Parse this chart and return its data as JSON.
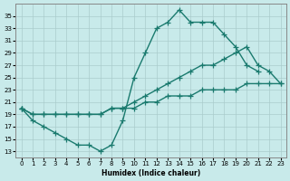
{
  "xlabel": "Humidex (Indice chaleur)",
  "ylabel": "",
  "bg_color": "#c8eaea",
  "line_color": "#1a7a6e",
  "grid_color": "#aacccc",
  "xlim": [
    -0.5,
    23.5
  ],
  "ylim": [
    12,
    37
  ],
  "yticks": [
    13,
    15,
    17,
    19,
    21,
    23,
    25,
    27,
    29,
    31,
    33,
    35
  ],
  "xticks": [
    0,
    1,
    2,
    3,
    4,
    5,
    6,
    7,
    8,
    9,
    10,
    11,
    12,
    13,
    14,
    15,
    16,
    17,
    18,
    19,
    20,
    21,
    22,
    23
  ],
  "line1_x": [
    0,
    1,
    2,
    3,
    4,
    5,
    6,
    7,
    8,
    9,
    10,
    11,
    12,
    13,
    14,
    15,
    16,
    17,
    18,
    19,
    20,
    21
  ],
  "line1_y": [
    20,
    18,
    17,
    16,
    15,
    14,
    14,
    13,
    14,
    18,
    25,
    29,
    33,
    34,
    36,
    34,
    34,
    34,
    32,
    30,
    27,
    26
  ],
  "line2_x": [
    0,
    1,
    2,
    3,
    4,
    5,
    6,
    7,
    8,
    9,
    10,
    11,
    12,
    13,
    14,
    15,
    16,
    17,
    18,
    19,
    20,
    21,
    22,
    23
  ],
  "line2_y": [
    20,
    19,
    19,
    19,
    19,
    19,
    19,
    19,
    20,
    20,
    21,
    22,
    23,
    24,
    25,
    26,
    27,
    27,
    28,
    29,
    30,
    27,
    26,
    24
  ],
  "line3_x": [
    0,
    1,
    2,
    3,
    4,
    5,
    6,
    7,
    8,
    9,
    10,
    11,
    12,
    13,
    14,
    15,
    16,
    17,
    18,
    19,
    20,
    21,
    22,
    23
  ],
  "line3_y": [
    20,
    19,
    19,
    19,
    19,
    19,
    19,
    19,
    20,
    20,
    20,
    21,
    21,
    22,
    22,
    22,
    23,
    23,
    23,
    23,
    24,
    24,
    24,
    24
  ],
  "marker": "+",
  "markersize": 4,
  "linewidth": 1.0
}
